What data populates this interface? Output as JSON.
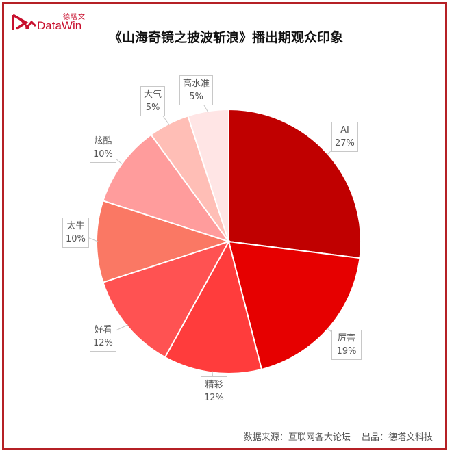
{
  "brand": {
    "name_cn": "德塔文",
    "name_en": "DataWin",
    "color": "#c8102e"
  },
  "frame_color": "#b52025",
  "chart_data": {
    "type": "pie",
    "title": "《山海奇镜之披波斩浪》播出期观众印象",
    "start_angle": "12 o'clock, clockwise",
    "categories": [
      "AI",
      "厉害",
      "精彩",
      "好看",
      "太牛",
      "炫酷",
      "大气",
      "高水准"
    ],
    "values": [
      27,
      19,
      12,
      12,
      10,
      10,
      5,
      5
    ],
    "unit": "%",
    "colors": [
      "#c00000",
      "#e60000",
      "#ff3c3c",
      "#ff5252",
      "#fa7864",
      "#ff9c9c",
      "#ffbeb6",
      "#ffe5e5"
    ],
    "labels": [
      {
        "name": "AI",
        "pct": "27%"
      },
      {
        "name": "厉害",
        "pct": "19%"
      },
      {
        "name": "精彩",
        "pct": "12%"
      },
      {
        "name": "好看",
        "pct": "12%"
      },
      {
        "name": "太牛",
        "pct": "10%"
      },
      {
        "name": "炫酷",
        "pct": "10%"
      },
      {
        "name": "大气",
        "pct": "5%"
      },
      {
        "name": "高水准",
        "pct": "5%"
      }
    ],
    "legend": "none (callout labels)"
  },
  "footer": {
    "source_label": "数据来源：",
    "source_value": "互联网各大论坛",
    "producer_label": "出品：",
    "producer_value": "德塔文科技"
  }
}
